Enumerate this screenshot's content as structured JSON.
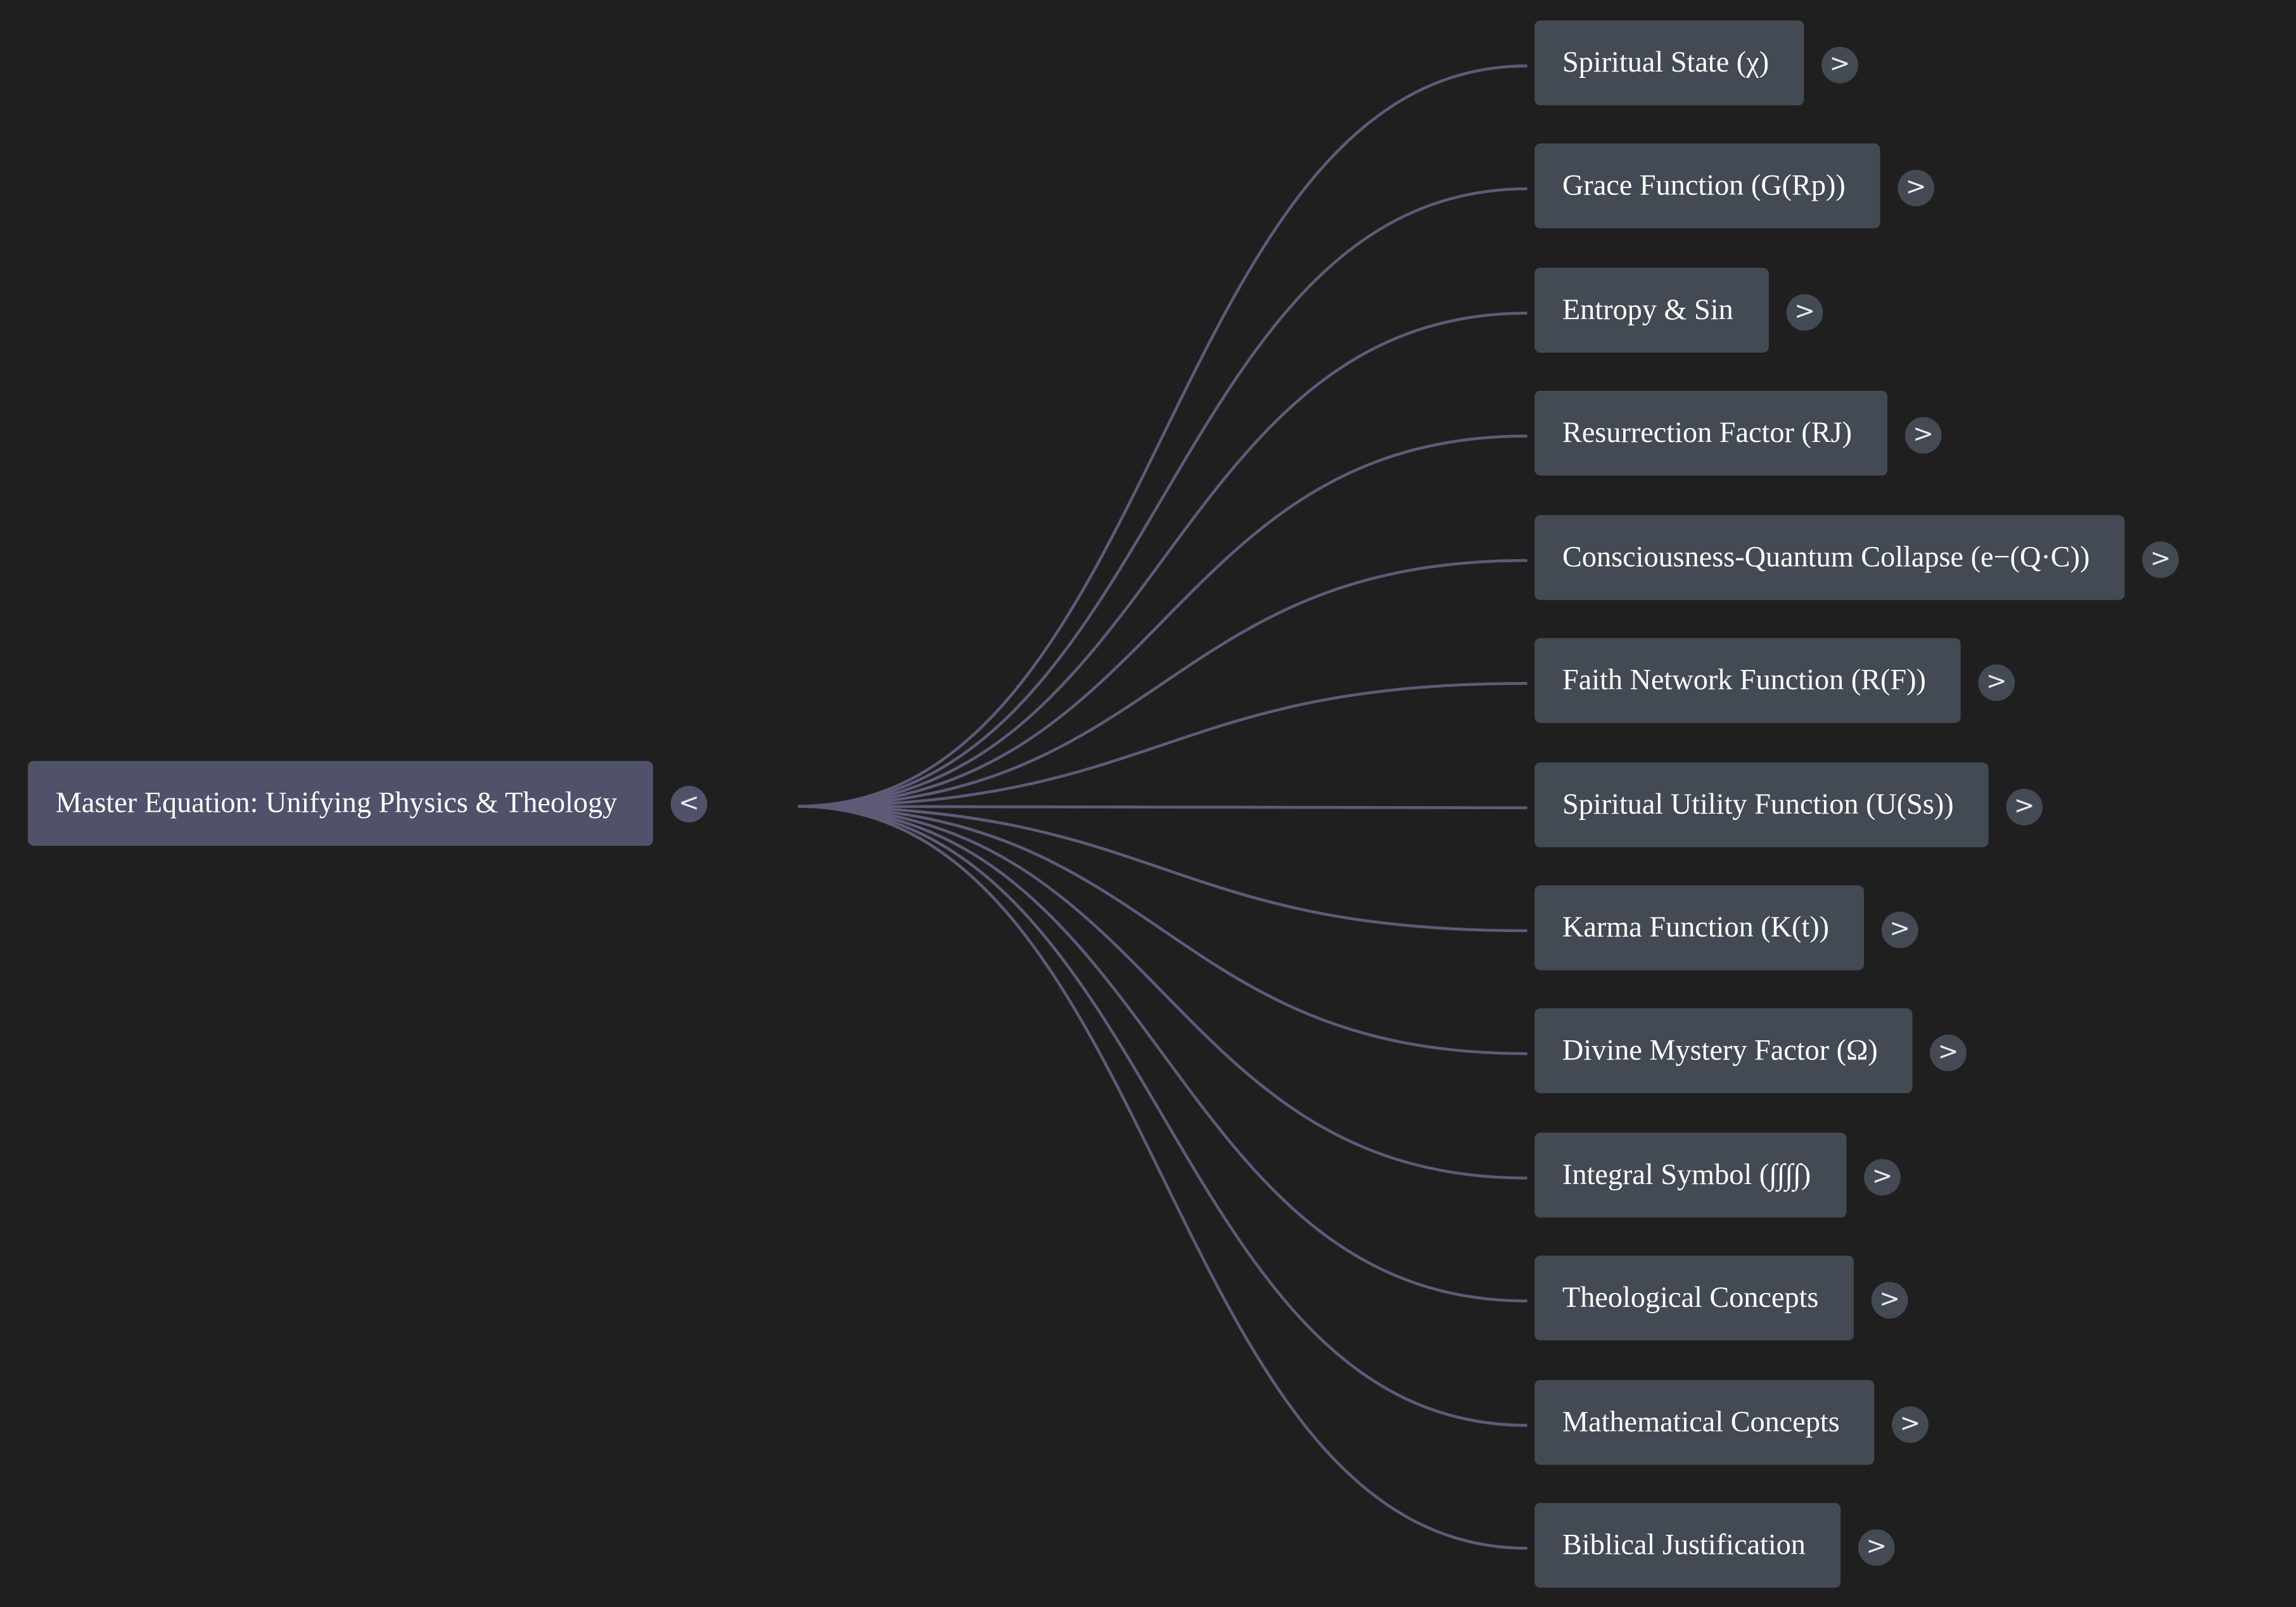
{
  "colors": {
    "background": "#1f1f1f",
    "root_node": "#50526a",
    "child_node": "#434a53",
    "edge": "#5e5a78",
    "text": "#ffffff"
  },
  "root": {
    "label": "Master Equation: Unifying Physics & Theology",
    "toggle": "<"
  },
  "children": [
    {
      "label": "Spiritual State (χ)",
      "toggle": ">"
    },
    {
      "label": "Grace Function (G(Rp))",
      "toggle": ">"
    },
    {
      "label": "Entropy & Sin",
      "toggle": ">"
    },
    {
      "label": "Resurrection Factor (RJ)",
      "toggle": ">"
    },
    {
      "label": "Consciousness-Quantum Collapse (e−(Q·C))",
      "toggle": ">"
    },
    {
      "label": "Faith Network Function (R(F))",
      "toggle": ">"
    },
    {
      "label": "Spiritual Utility Function (U(Ss))",
      "toggle": ">"
    },
    {
      "label": "Karma Function (K(t))",
      "toggle": ">"
    },
    {
      "label": "Divine Mystery Factor (Ω)",
      "toggle": ">"
    },
    {
      "label": "Integral Symbol (∫∫∫∫)",
      "toggle": ">"
    },
    {
      "label": "Theological Concepts",
      "toggle": ">"
    },
    {
      "label": "Mathematical Concepts",
      "toggle": ">"
    },
    {
      "label": "Biblical Justification",
      "toggle": ">"
    }
  ]
}
